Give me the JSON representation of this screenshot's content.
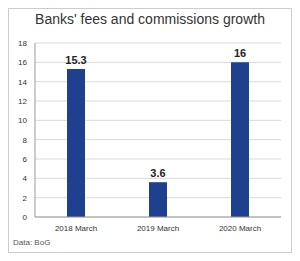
{
  "chart_data": {
    "type": "bar",
    "title": "Banks' fees and commissions growth",
    "categories": [
      "2018 March",
      "2019 March",
      "2020 March"
    ],
    "values": [
      15.3,
      3.6,
      16
    ],
    "color": "#1f3f8f",
    "ylim": [
      0,
      18
    ],
    "yticks": [
      0,
      2,
      4,
      6,
      8,
      10,
      12,
      14,
      16,
      18
    ],
    "grid": true,
    "data_labels": true,
    "annotations": [
      "Data: BoG"
    ]
  }
}
